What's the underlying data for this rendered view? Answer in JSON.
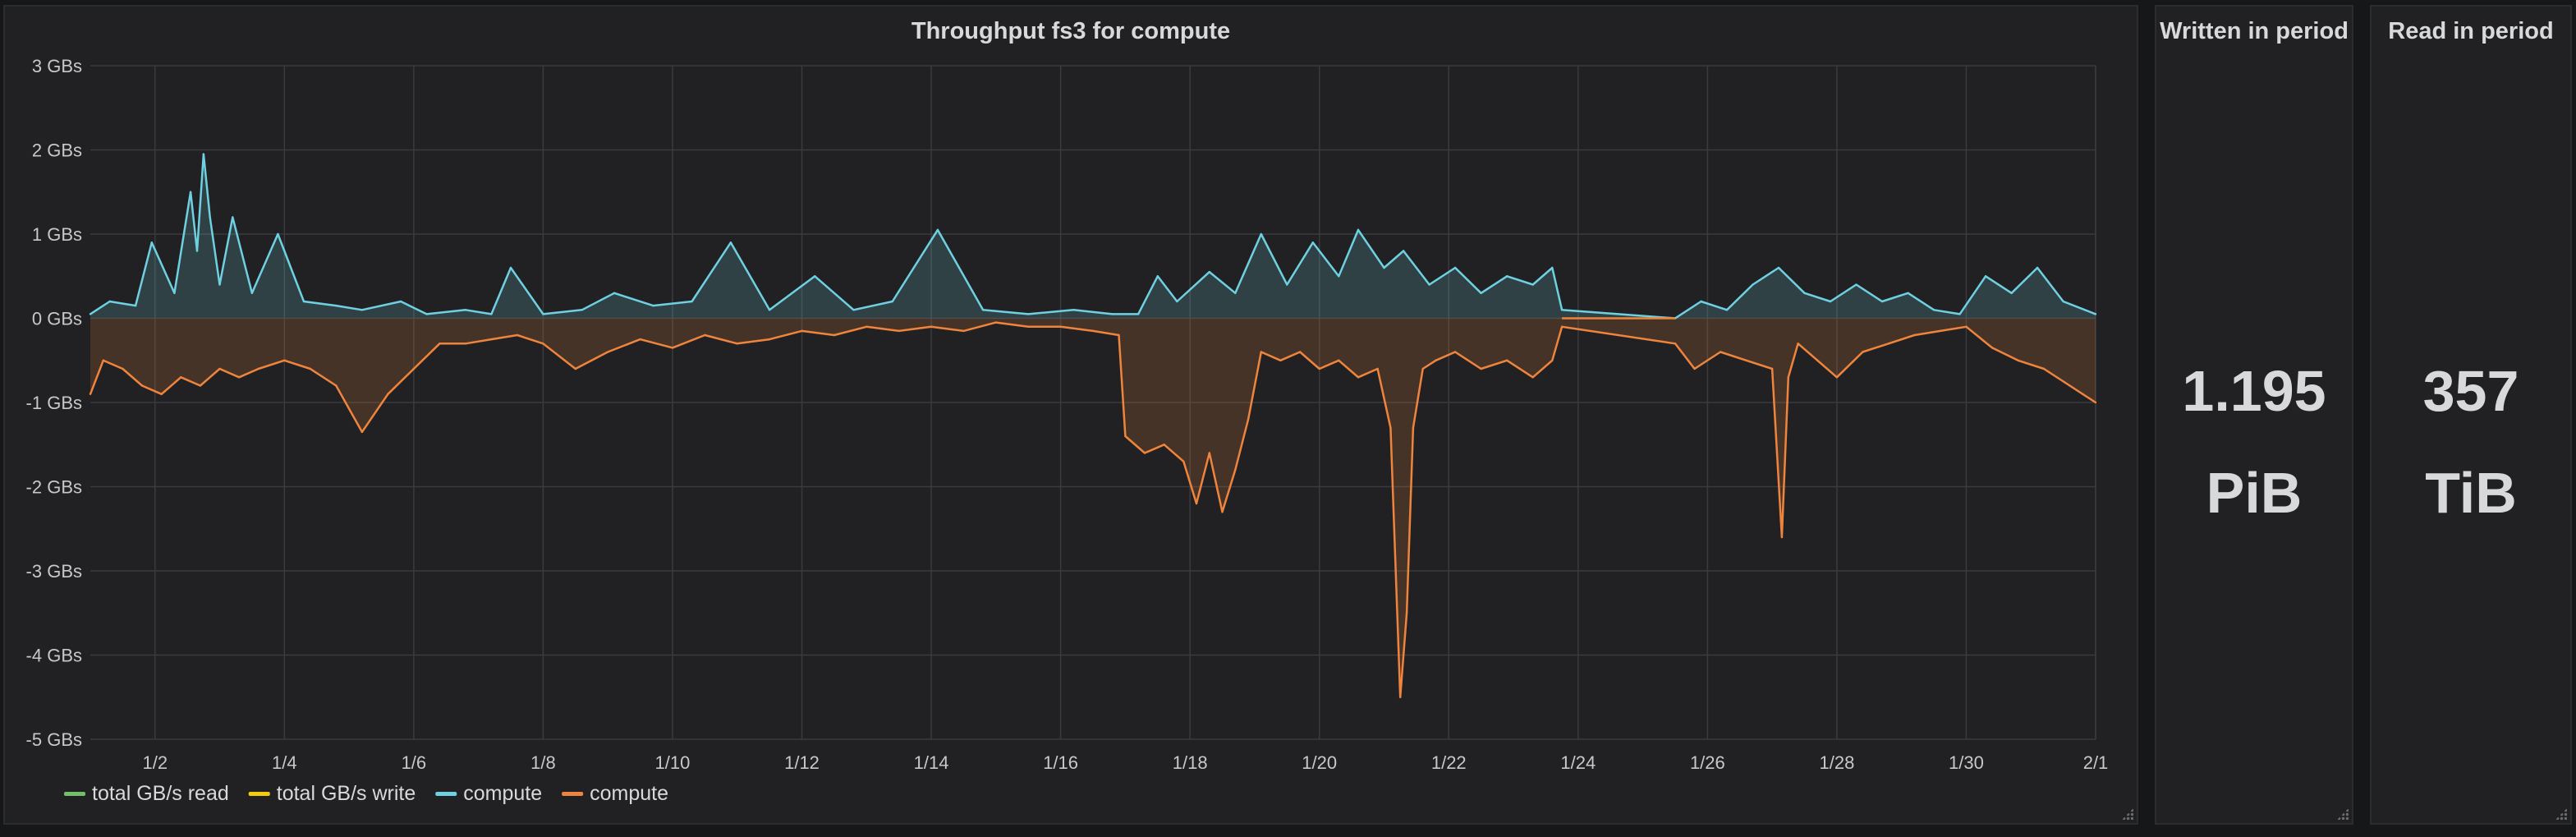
{
  "chart_panel": {
    "title": "Throughput fs3 for compute"
  },
  "written_panel": {
    "title": "Written in period",
    "value": "1.195",
    "unit": "PiB"
  },
  "read_panel": {
    "title": "Read in period",
    "value": "357",
    "unit": "TiB"
  },
  "colors": {
    "grid": "#3a3b3e",
    "axis_text": "#c7c8ca",
    "read_line": "#73bf69",
    "write_line": "#f2cc0c",
    "compute_read": "#6ed0e0",
    "compute_write": "#ef843c"
  },
  "chart_data": {
    "type": "area",
    "ylim": [
      -5,
      3
    ],
    "y_ticks": [
      "3 GBs",
      "2 GBs",
      "1 GBs",
      "0 GBs",
      "-1 GBs",
      "-2 GBs",
      "-3 GBs",
      "-4 GBs",
      "-5 GBs"
    ],
    "y_tick_values": [
      3,
      2,
      1,
      0,
      -1,
      -2,
      -3,
      -4,
      -5
    ],
    "x_ticks": [
      "1/2",
      "1/4",
      "1/6",
      "1/8",
      "1/10",
      "1/12",
      "1/14",
      "1/16",
      "1/18",
      "1/20",
      "1/22",
      "1/24",
      "1/26",
      "1/28",
      "1/30",
      "2/1"
    ],
    "x_tick_days": [
      2,
      4,
      6,
      8,
      10,
      12,
      14,
      16,
      18,
      20,
      22,
      24,
      26,
      28,
      30,
      32
    ],
    "xlim_days": [
      1,
      32
    ],
    "grid": true,
    "legend_position": "bottom-left",
    "legend": [
      {
        "name": "total GB/s read",
        "color": "#73bf69"
      },
      {
        "name": "total GB/s write",
        "color": "#f2cc0c"
      },
      {
        "name": "compute",
        "color": "#6ed0e0"
      },
      {
        "name": "compute",
        "color": "#ef843c"
      }
    ],
    "series": [
      {
        "name": "compute",
        "color": "#6ed0e0",
        "x": [
          1.0,
          1.3,
          1.7,
          1.95,
          2.3,
          2.55,
          2.65,
          2.75,
          2.85,
          3.0,
          3.2,
          3.5,
          3.9,
          4.3,
          4.8,
          5.2,
          5.8,
          6.2,
          6.8,
          7.2,
          7.5,
          8.0,
          8.6,
          9.1,
          9.7,
          10.3,
          10.9,
          11.5,
          12.2,
          12.8,
          13.4,
          14.1,
          14.8,
          15.5,
          16.2,
          16.8,
          17.2,
          17.5,
          17.8,
          18.3,
          18.7,
          19.1,
          19.5,
          19.9,
          20.3,
          20.6,
          21.0,
          21.3,
          21.7,
          22.1,
          22.5,
          22.9,
          23.3,
          23.6,
          23.75,
          25.5,
          25.9,
          26.3,
          26.7,
          27.1,
          27.5,
          27.9,
          28.3,
          28.7,
          29.1,
          29.5,
          29.9,
          30.3,
          30.7,
          31.1,
          31.5,
          32.0
        ],
        "y": [
          0.05,
          0.2,
          0.15,
          0.9,
          0.3,
          1.5,
          0.8,
          1.95,
          1.2,
          0.4,
          1.2,
          0.3,
          1.0,
          0.2,
          0.15,
          0.1,
          0.2,
          0.05,
          0.1,
          0.05,
          0.6,
          0.05,
          0.1,
          0.3,
          0.15,
          0.2,
          0.9,
          0.1,
          0.5,
          0.1,
          0.2,
          1.05,
          0.1,
          0.05,
          0.1,
          0.05,
          0.05,
          0.5,
          0.2,
          0.55,
          0.3,
          1.0,
          0.4,
          0.9,
          0.5,
          1.05,
          0.6,
          0.8,
          0.4,
          0.6,
          0.3,
          0.5,
          0.4,
          0.6,
          0.1,
          0.0,
          0.2,
          0.1,
          0.4,
          0.6,
          0.3,
          0.2,
          0.4,
          0.2,
          0.3,
          0.1,
          0.05,
          0.5,
          0.3,
          0.6,
          0.2,
          0.05
        ]
      },
      {
        "name": "compute",
        "color": "#ef843c",
        "x": [
          1.0,
          1.2,
          1.5,
          1.8,
          2.1,
          2.4,
          2.7,
          3.0,
          3.3,
          3.6,
          4.0,
          4.4,
          4.8,
          5.2,
          5.6,
          6.0,
          6.4,
          6.8,
          7.2,
          7.6,
          8.0,
          8.5,
          9.0,
          9.5,
          10.0,
          10.5,
          11.0,
          11.5,
          12.0,
          12.5,
          13.0,
          13.5,
          14.0,
          14.5,
          15.0,
          15.5,
          16.0,
          16.5,
          16.9,
          17.0,
          17.3,
          17.6,
          17.9,
          18.1,
          18.3,
          18.5,
          18.7,
          18.9,
          19.1,
          19.4,
          19.7,
          20.0,
          20.3,
          20.6,
          20.9,
          21.1,
          21.25,
          21.35,
          21.45,
          21.6,
          21.8,
          22.1,
          22.5,
          22.9,
          23.3,
          23.6,
          23.75,
          25.5,
          25.8,
          26.2,
          26.6,
          27.0,
          27.15,
          27.25,
          27.4,
          27.7,
          28.0,
          28.4,
          28.8,
          29.2,
          29.6,
          30.0,
          30.4,
          30.8,
          31.2,
          31.6,
          32.0
        ],
        "y": [
          -0.9,
          -0.5,
          -0.6,
          -0.8,
          -0.9,
          -0.7,
          -0.8,
          -0.6,
          -0.7,
          -0.6,
          -0.5,
          -0.6,
          -0.8,
          -1.35,
          -0.9,
          -0.6,
          -0.3,
          -0.3,
          -0.25,
          -0.2,
          -0.3,
          -0.6,
          -0.4,
          -0.25,
          -0.35,
          -0.2,
          -0.3,
          -0.25,
          -0.15,
          -0.2,
          -0.1,
          -0.15,
          -0.1,
          -0.15,
          -0.05,
          -0.1,
          -0.1,
          -0.15,
          -0.2,
          -1.4,
          -1.6,
          -1.5,
          -1.7,
          -2.2,
          -1.6,
          -2.3,
          -1.8,
          -1.2,
          -0.4,
          -0.5,
          -0.4,
          -0.6,
          -0.5,
          -0.7,
          -0.6,
          -1.3,
          -4.5,
          -3.5,
          -1.3,
          -0.6,
          -0.5,
          -0.4,
          -0.6,
          -0.5,
          -0.7,
          -0.5,
          -0.1,
          -0.3,
          -0.6,
          -0.4,
          -0.5,
          -0.6,
          -2.6,
          -0.7,
          -0.3,
          -0.5,
          -0.7,
          -0.4,
          -0.3,
          -0.2,
          -0.15,
          -0.1,
          -0.35,
          -0.5,
          -0.6,
          -0.8,
          -1.0
        ]
      }
    ]
  }
}
